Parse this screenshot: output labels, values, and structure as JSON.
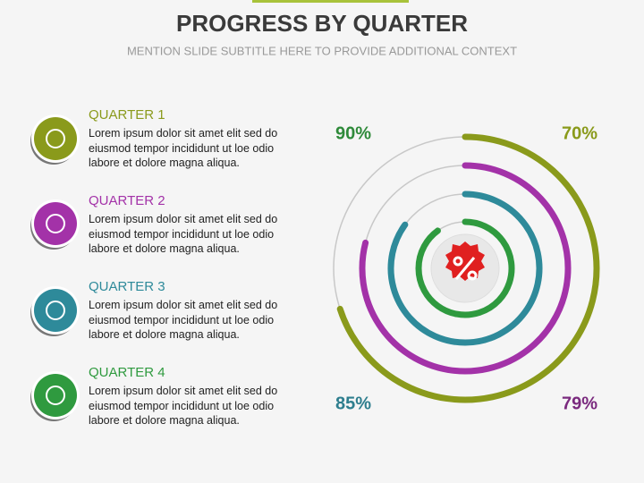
{
  "chart_data": {
    "type": "radial",
    "title": "PROGRESS BY QUARTER",
    "subtitle": "MENTION SLIDE SUBTITLE HERE TO PROVIDE ADDITIONAL CONTEXT",
    "categories": [
      "QUARTER 1",
      "QUARTER 2",
      "QUARTER 3",
      "QUARTER 4"
    ],
    "descriptions": [
      "Lorem ipsum dolor sit amet elit sed do eiusmod tempor incididunt ut loe odio labore et dolore magna aliqua.",
      "Lorem ipsum dolor sit amet elit sed do eiusmod tempor incididunt ut loe odio labore et dolore magna aliqua.",
      "Lorem ipsum dolor sit amet elit sed do eiusmod tempor incididunt ut loe odio labore et dolore magna aliqua.",
      "Lorem ipsum dolor sit amet elit sed do eiusmod tempor incididunt ut loe odio labore et dolore magna aliqua."
    ],
    "values": [
      70,
      79,
      85,
      90
    ],
    "value_labels": [
      "70%",
      "79%",
      "85%",
      "90%"
    ],
    "colors": [
      "#8a9a1b",
      "#a332a8",
      "#2e8a9a",
      "#2f9a3f"
    ],
    "label_colors": [
      "#8a9a1b",
      "#7a2a7e",
      "#2e7e8e",
      "#2f8a3a"
    ]
  }
}
